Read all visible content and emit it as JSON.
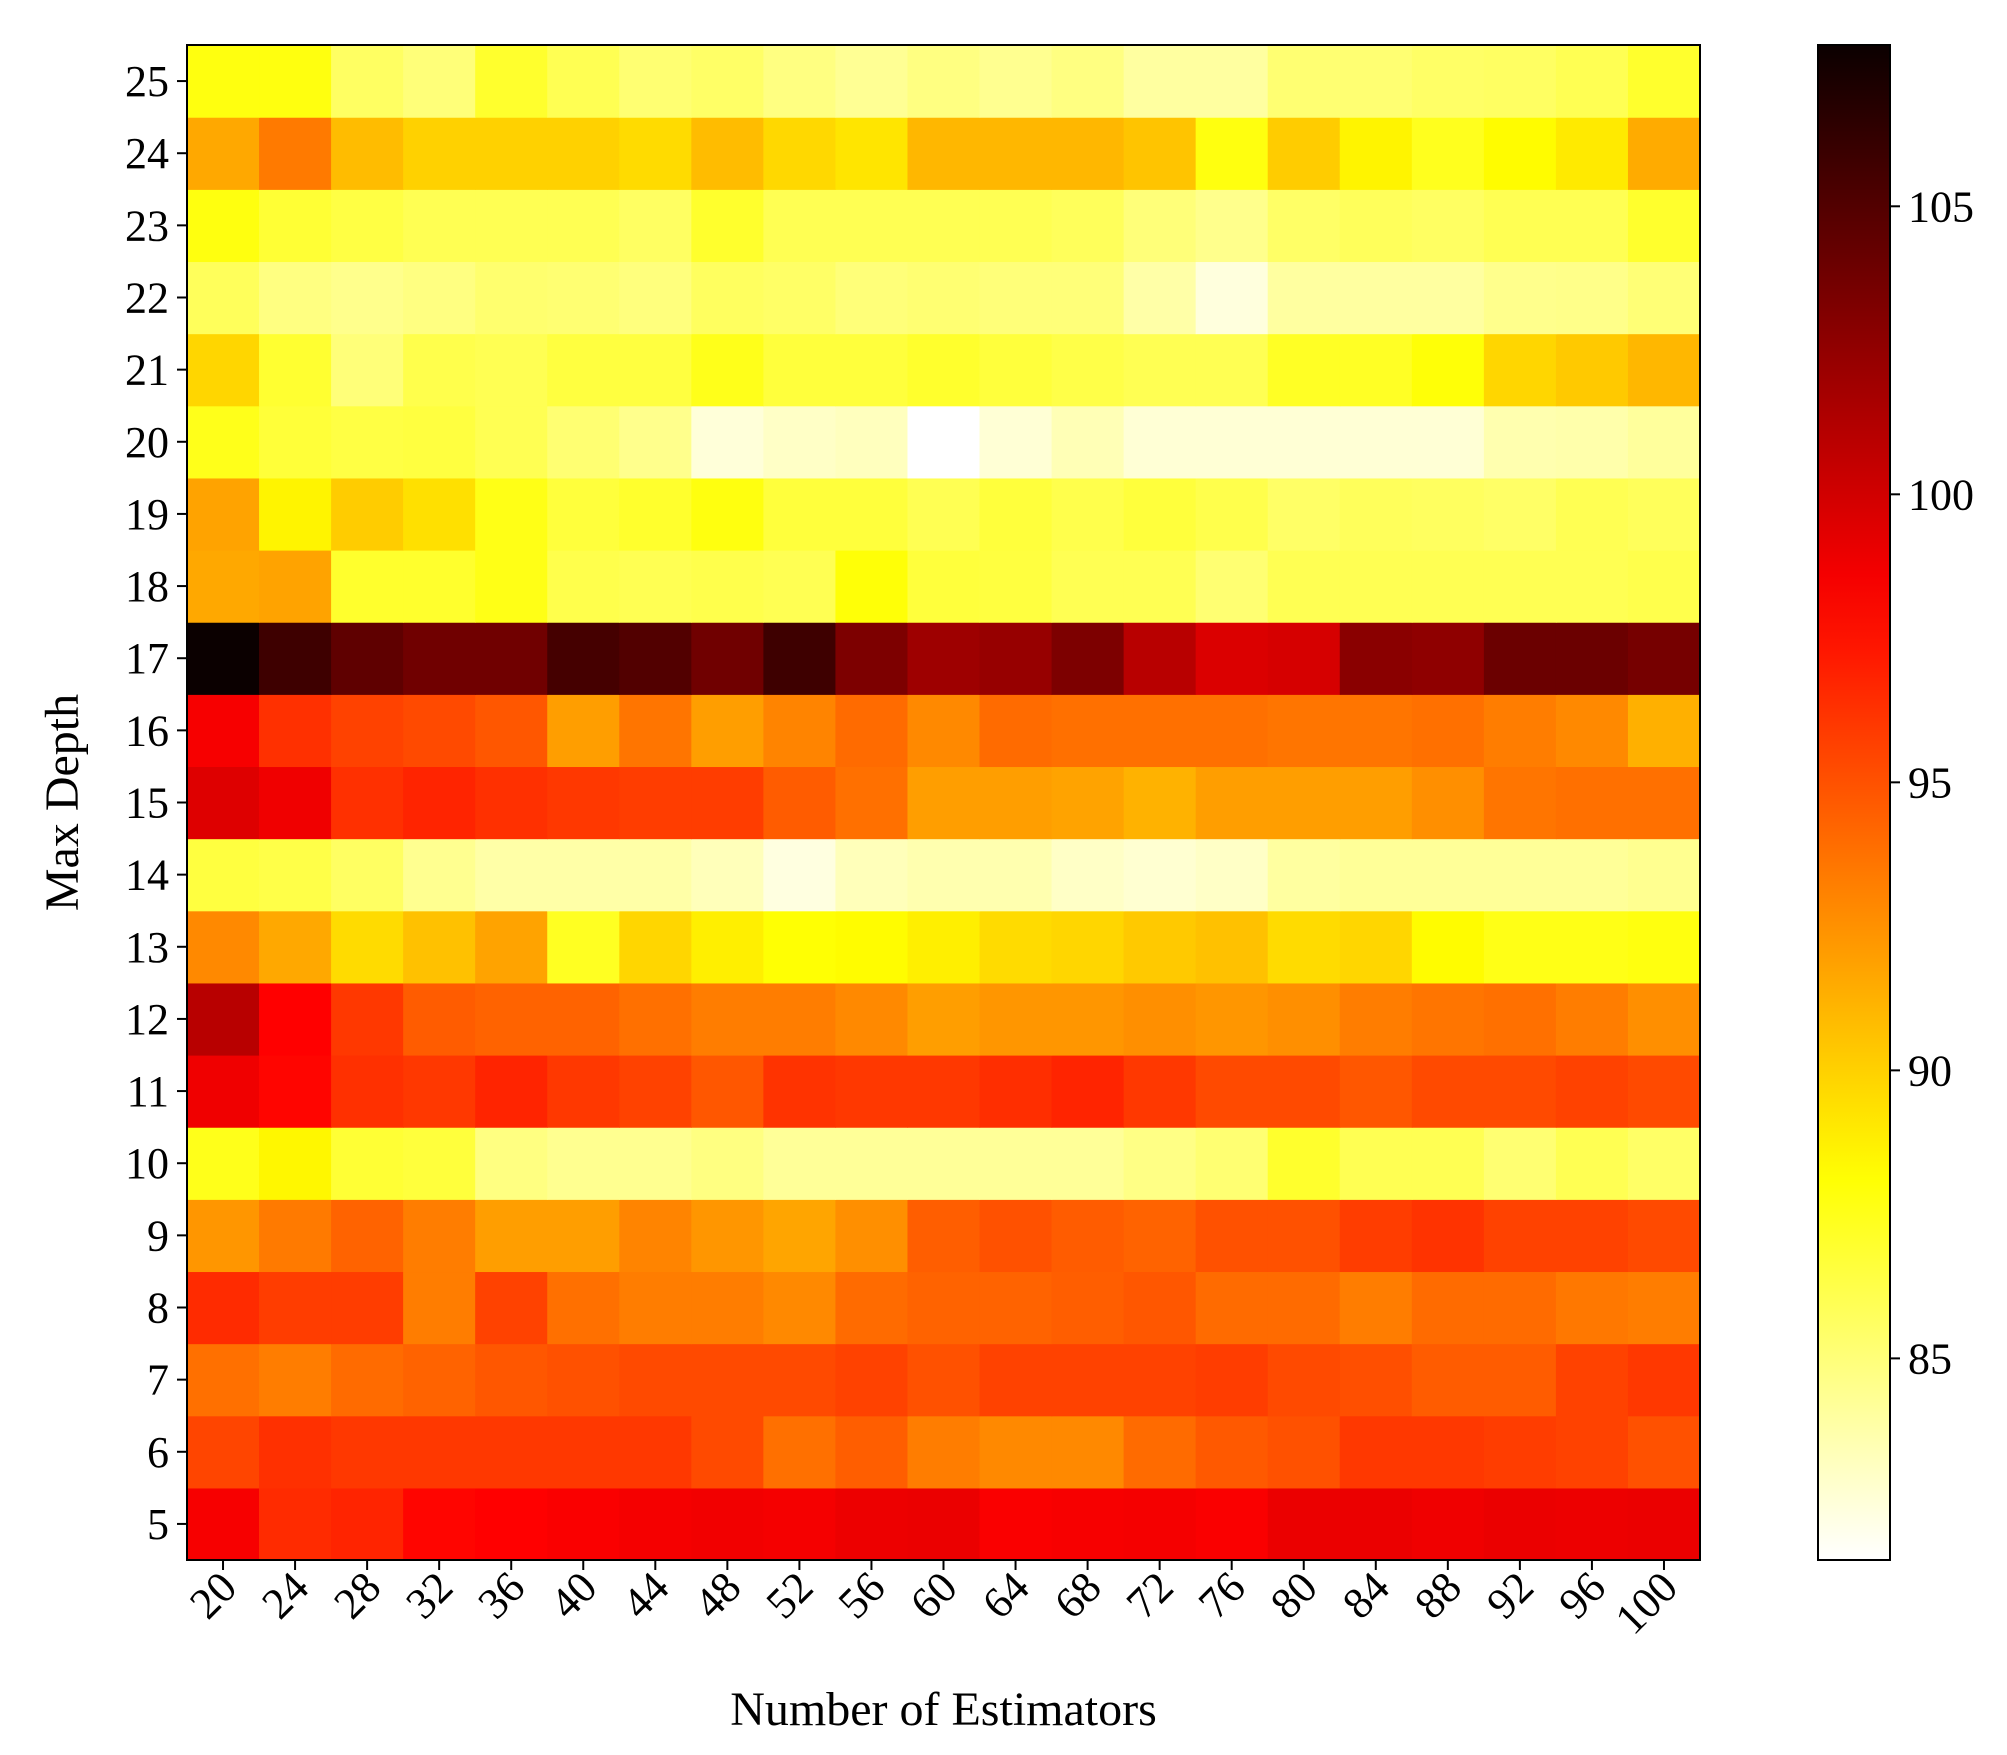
{
  "chart_data": {
    "type": "heatmap",
    "title": "",
    "xlabel": "Number of Estimators",
    "ylabel": "Max Depth",
    "x": [
      20,
      24,
      28,
      32,
      36,
      40,
      44,
      48,
      52,
      56,
      60,
      64,
      68,
      72,
      76,
      80,
      84,
      88,
      92,
      96,
      100
    ],
    "y": [
      5,
      6,
      7,
      8,
      9,
      10,
      11,
      12,
      13,
      14,
      15,
      16,
      17,
      18,
      19,
      20,
      21,
      22,
      23,
      24,
      25
    ],
    "values": [
      [
        98.5,
        96.5,
        96.8,
        98.0,
        98.2,
        98.4,
        98.6,
        98.7,
        98.6,
        98.9,
        99.0,
        98.4,
        98.5,
        98.6,
        98.4,
        99.0,
        99.0,
        98.8,
        99.0,
        98.9,
        99.0
      ],
      [
        95.5,
        96.3,
        96.0,
        96.0,
        96.0,
        96.0,
        96.0,
        95.3,
        93.8,
        94.5,
        93.3,
        92.8,
        92.8,
        94.0,
        94.7,
        95.0,
        96.0,
        96.0,
        95.8,
        95.6,
        95.0
      ],
      [
        93.8,
        93.3,
        94.0,
        94.3,
        94.8,
        95.0,
        95.3,
        95.3,
        95.3,
        95.6,
        95.0,
        95.6,
        95.6,
        95.6,
        95.8,
        95.3,
        95.1,
        94.6,
        94.6,
        95.6,
        96.0
      ],
      [
        96.5,
        95.8,
        95.8,
        93.3,
        95.6,
        93.8,
        93.3,
        93.3,
        92.8,
        94.0,
        94.3,
        94.3,
        94.5,
        94.8,
        94.0,
        94.0,
        93.3,
        94.0,
        94.0,
        93.5,
        93.3
      ],
      [
        92.3,
        93.4,
        94.3,
        93.3,
        92.0,
        92.0,
        93.0,
        92.3,
        91.7,
        92.6,
        94.5,
        95.0,
        94.6,
        94.3,
        95.0,
        95.0,
        95.8,
        96.2,
        95.6,
        95.6,
        95.3
      ],
      [
        87.5,
        88.5,
        86.8,
        86.6,
        84.8,
        84.4,
        84.4,
        84.8,
        84.2,
        84.2,
        84.2,
        84.2,
        84.2,
        84.7,
        85.2,
        87.0,
        86.0,
        86.0,
        85.2,
        86.0,
        85.5
      ],
      [
        98.8,
        98.0,
        96.3,
        96.0,
        96.8,
        96.0,
        95.6,
        94.8,
        96.2,
        96.0,
        96.0,
        96.4,
        96.8,
        96.0,
        95.3,
        95.3,
        94.8,
        95.3,
        95.3,
        95.6,
        95.3
      ],
      [
        101.0,
        98.2,
        96.0,
        94.6,
        94.3,
        94.3,
        93.8,
        93.3,
        93.3,
        92.8,
        92.0,
        92.3,
        92.3,
        92.6,
        92.3,
        92.6,
        93.3,
        93.6,
        93.8,
        93.3,
        92.6
      ],
      [
        92.8,
        91.6,
        89.6,
        90.6,
        91.8,
        87.3,
        89.8,
        88.8,
        88.1,
        88.3,
        88.8,
        89.6,
        89.8,
        90.3,
        90.6,
        89.6,
        89.8,
        88.3,
        87.6,
        87.6,
        87.8
      ],
      [
        86.5,
        86.3,
        85.6,
        84.4,
        83.8,
        83.8,
        83.8,
        83.3,
        82.3,
        83.3,
        83.6,
        83.6,
        83.0,
        82.7,
        83.0,
        84.0,
        84.2,
        84.2,
        84.2,
        84.2,
        84.4
      ],
      [
        99.5,
        98.8,
        96.3,
        96.8,
        96.3,
        96.0,
        95.8,
        95.8,
        94.6,
        93.8,
        92.0,
        92.0,
        91.8,
        91.2,
        92.0,
        92.0,
        92.0,
        92.6,
        93.6,
        93.8,
        93.8
      ],
      [
        98.5,
        96.3,
        95.6,
        95.3,
        94.8,
        92.0,
        93.6,
        92.0,
        93.0,
        94.0,
        92.8,
        94.0,
        93.8,
        93.8,
        93.8,
        93.6,
        93.6,
        93.8,
        93.3,
        92.8,
        91.3
      ],
      [
        107.8,
        105.8,
        104.5,
        103.8,
        103.8,
        105.5,
        105.0,
        103.8,
        105.8,
        103.3,
        102.0,
        102.3,
        103.3,
        101.0,
        99.6,
        99.8,
        102.8,
        102.6,
        104.0,
        104.0,
        103.6
      ],
      [
        91.6,
        91.8,
        87.0,
        87.0,
        87.6,
        86.2,
        86.0,
        86.2,
        86.0,
        88.0,
        86.6,
        86.5,
        86.0,
        86.0,
        85.2,
        86.0,
        86.0,
        86.0,
        86.0,
        86.0,
        86.2
      ],
      [
        91.8,
        88.6,
        90.2,
        89.4,
        87.6,
        86.6,
        87.0,
        87.8,
        86.6,
        86.6,
        86.0,
        86.6,
        86.2,
        86.6,
        86.2,
        85.5,
        85.8,
        85.7,
        85.5,
        86.0,
        85.8
      ],
      [
        87.5,
        86.7,
        86.4,
        86.5,
        86.0,
        85.2,
        84.5,
        82.5,
        83.0,
        83.2,
        81.5,
        82.6,
        83.4,
        82.6,
        82.6,
        82.6,
        82.6,
        82.6,
        83.6,
        83.7,
        84.1
      ],
      [
        89.8,
        86.9,
        85.0,
        86.2,
        86.0,
        86.5,
        86.5,
        87.5,
        86.6,
        86.6,
        87.0,
        86.6,
        86.3,
        86.0,
        86.0,
        87.2,
        87.2,
        88.0,
        89.8,
        90.3,
        91.0
      ],
      [
        85.8,
        84.8,
        84.5,
        84.8,
        85.3,
        85.2,
        84.9,
        85.7,
        85.5,
        85.0,
        85.2,
        85.0,
        85.0,
        83.8,
        82.4,
        84.0,
        84.0,
        84.0,
        84.5,
        84.6,
        85.1
      ],
      [
        87.8,
        86.8,
        86.4,
        86.0,
        86.0,
        86.0,
        85.6,
        87.0,
        86.0,
        86.0,
        86.0,
        86.0,
        85.8,
        85.0,
        84.5,
        85.5,
        85.8,
        85.6,
        86.0,
        86.0,
        87.0
      ],
      [
        91.6,
        93.4,
        90.8,
        90.0,
        90.0,
        90.0,
        89.6,
        90.8,
        89.7,
        89.2,
        91.0,
        91.0,
        91.0,
        90.5,
        87.8,
        90.2,
        88.6,
        87.4,
        88.3,
        89.0,
        91.5
      ],
      [
        87.8,
        87.8,
        85.6,
        85.0,
        87.0,
        86.0,
        85.2,
        85.5,
        84.8,
        84.3,
        84.8,
        84.4,
        84.8,
        84.0,
        84.0,
        85.2,
        85.2,
        85.5,
        85.6,
        86.0,
        87.0
      ]
    ],
    "colorscale": "hot_r",
    "vmin": 81.5,
    "vmax": 107.8,
    "colorbar_ticks": [
      85,
      90,
      95,
      100,
      105
    ],
    "grid": false,
    "legend": "colorbar-right"
  }
}
